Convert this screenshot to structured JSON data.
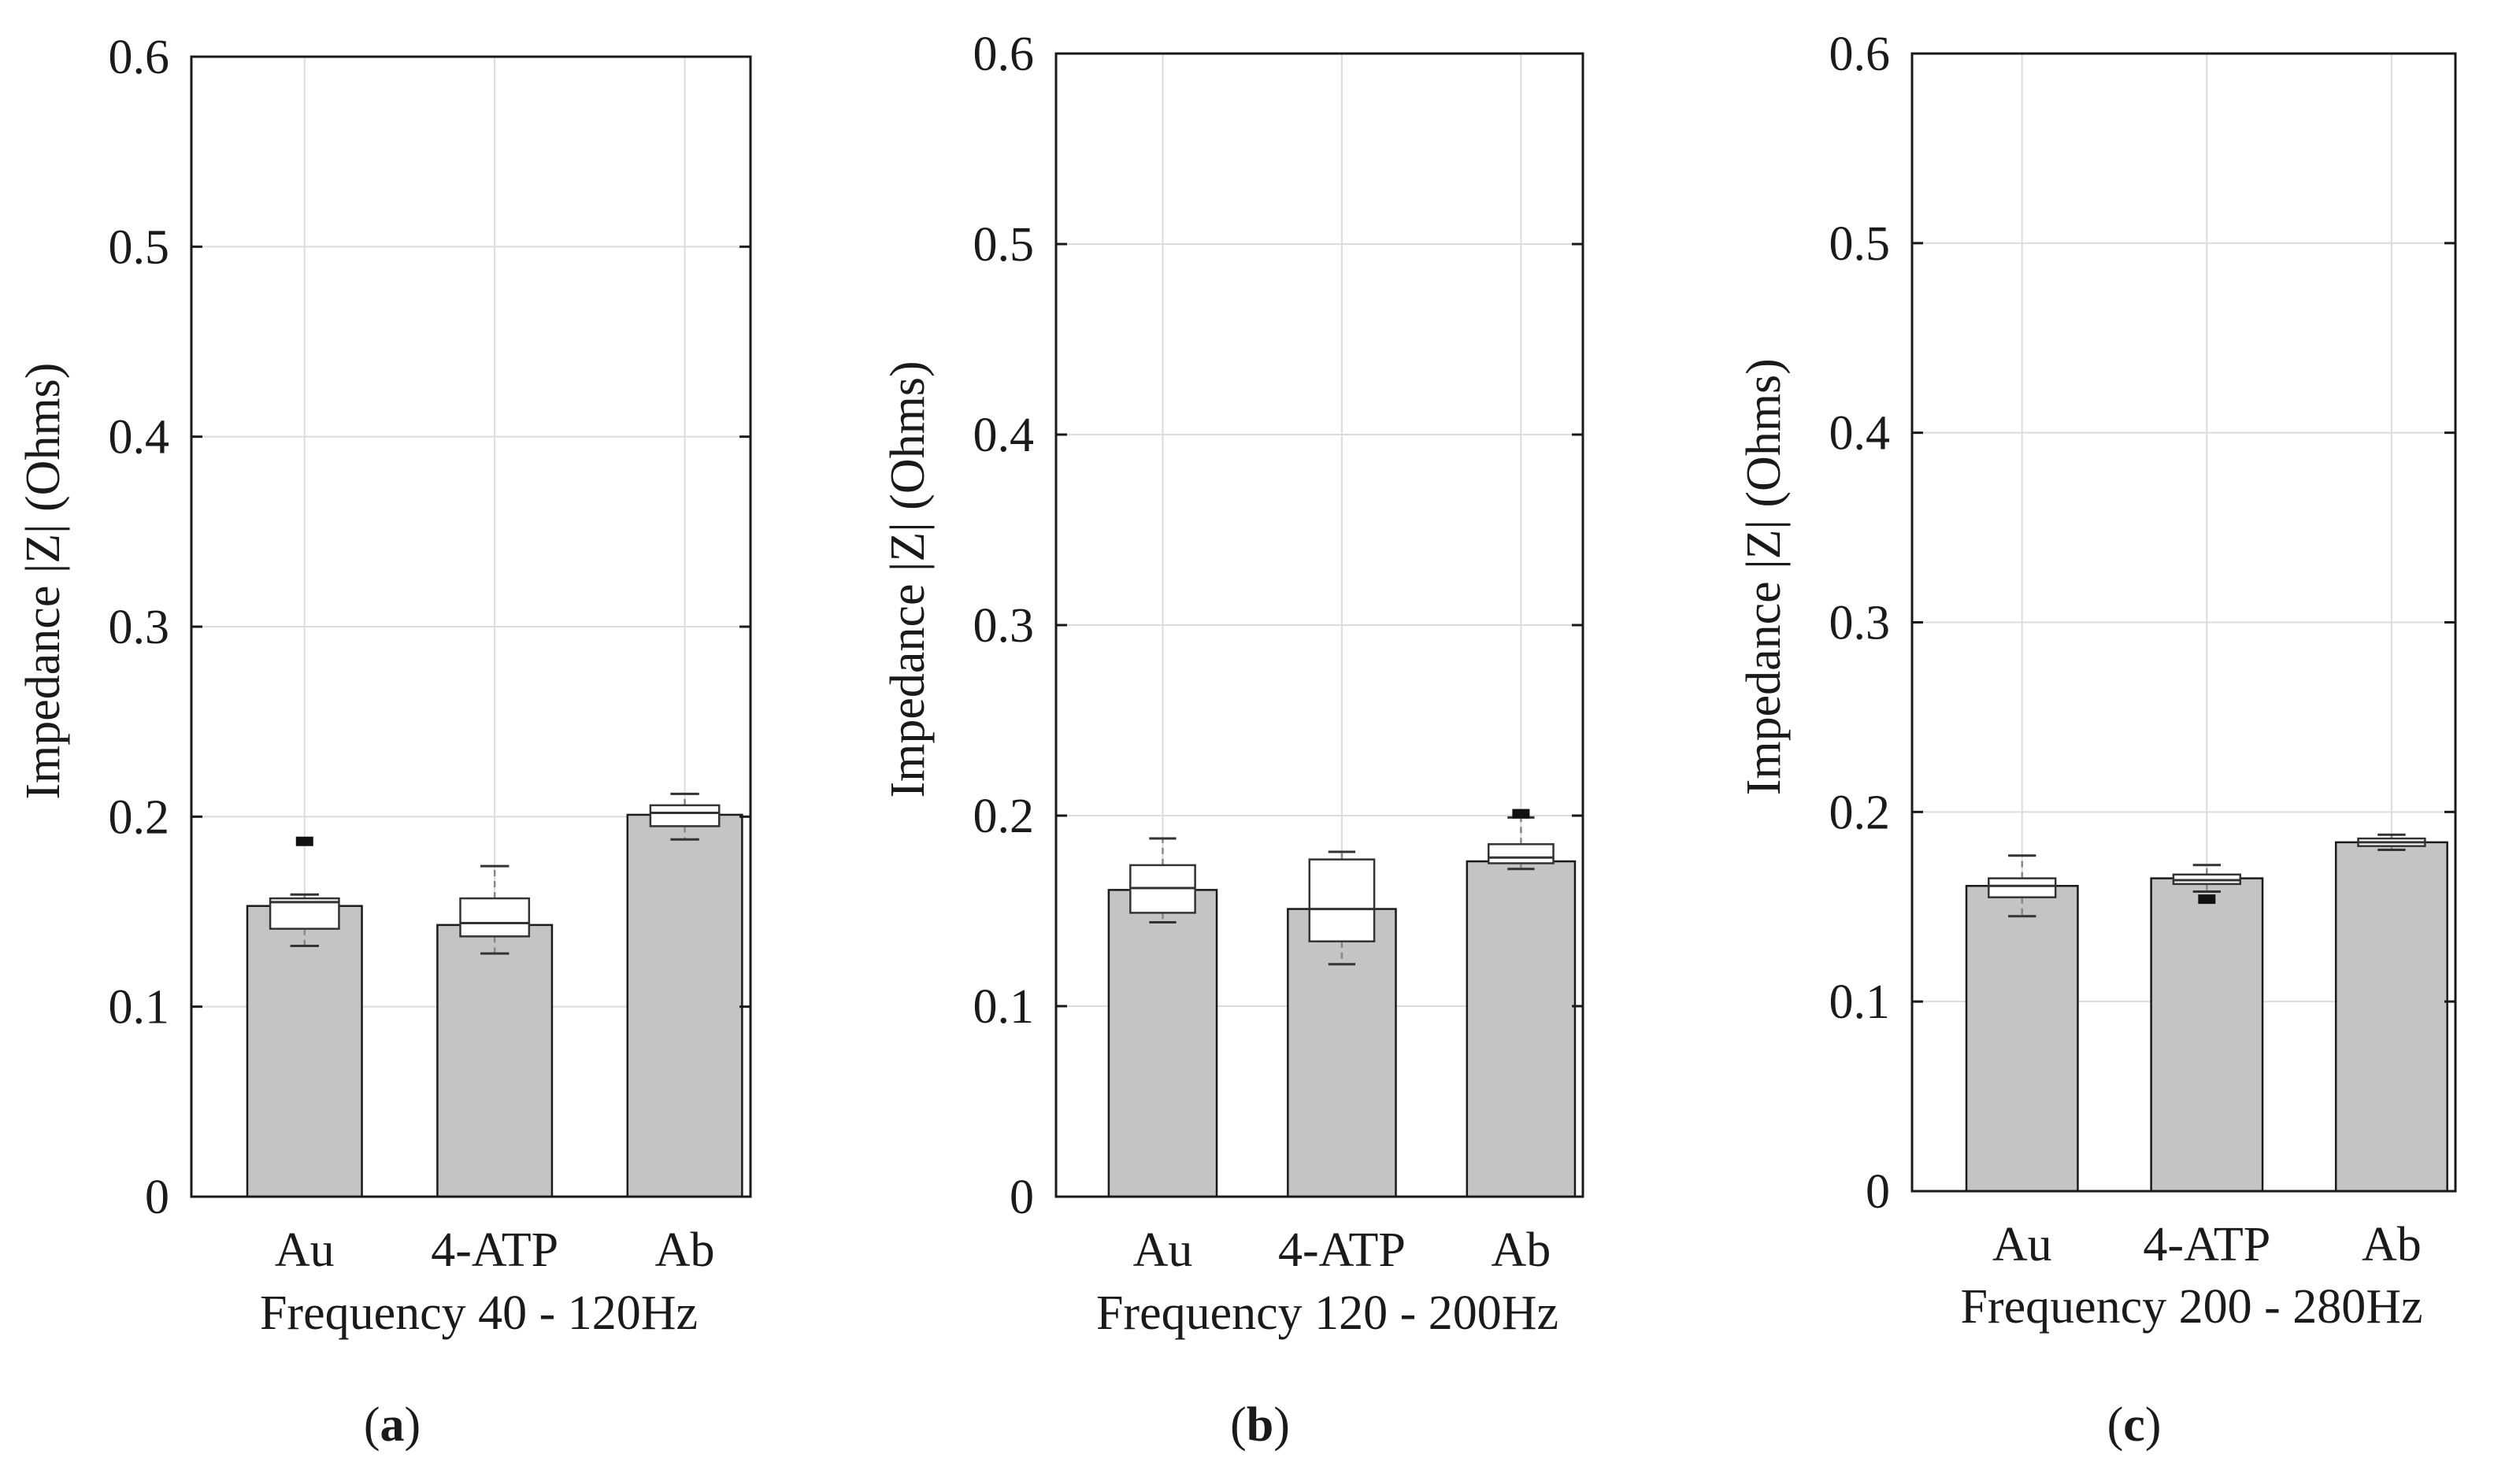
{
  "chart_data": [
    {
      "type": "bar",
      "panel_label": "a",
      "ylabel": "Impedance |Z| (Ohms)",
      "xlabel": "Frequency 40 - 120Hz",
      "ylim": [
        0,
        0.6
      ],
      "yticks": [
        0,
        0.1,
        0.2,
        0.3,
        0.4,
        0.5,
        0.6
      ],
      "ytick_labels": [
        "0",
        "0.1",
        "0.2",
        "0.3",
        "0.4",
        "0.5",
        "0.6"
      ],
      "grid": true,
      "categories": [
        "Au",
        "4-ATP",
        "Ab"
      ],
      "values": [
        0.153,
        0.143,
        0.201
      ],
      "boxplots": [
        {
          "whisker_low": 0.132,
          "q1": 0.141,
          "median": 0.155,
          "q3": 0.157,
          "whisker_high": 0.159,
          "outliers": [
            0.187
          ]
        },
        {
          "whisker_low": 0.128,
          "q1": 0.137,
          "median": 0.144,
          "q3": 0.157,
          "whisker_high": 0.174,
          "outliers": []
        },
        {
          "whisker_low": 0.188,
          "q1": 0.195,
          "median": 0.202,
          "q3": 0.206,
          "whisker_high": 0.212,
          "outliers": []
        }
      ]
    },
    {
      "type": "bar",
      "panel_label": "b",
      "ylabel": "Impedance |Z| (Ohms)",
      "xlabel": "Frequency 120 - 200Hz",
      "ylim": [
        0,
        0.6
      ],
      "yticks": [
        0,
        0.1,
        0.2,
        0.3,
        0.4,
        0.5,
        0.6
      ],
      "ytick_labels": [
        "0",
        "0.1",
        "0.2",
        "0.3",
        "0.4",
        "0.5",
        "0.6"
      ],
      "grid": true,
      "categories": [
        "Au",
        "4-ATP",
        "Ab"
      ],
      "values": [
        0.161,
        0.151,
        0.176
      ],
      "boxplots": [
        {
          "whisker_low": 0.144,
          "q1": 0.149,
          "median": 0.162,
          "q3": 0.174,
          "whisker_high": 0.188,
          "outliers": []
        },
        {
          "whisker_low": 0.122,
          "q1": 0.134,
          "median": 0.151,
          "q3": 0.177,
          "whisker_high": 0.181,
          "outliers": []
        },
        {
          "whisker_low": 0.172,
          "q1": 0.175,
          "median": 0.178,
          "q3": 0.185,
          "whisker_high": 0.199,
          "outliers": [
            0.201
          ]
        }
      ]
    },
    {
      "type": "bar",
      "panel_label": "c",
      "ylabel": "Impedance |Z| (Ohms)",
      "xlabel": "Frequency 200 - 280Hz",
      "ylim": [
        0,
        0.6
      ],
      "yticks": [
        0,
        0.1,
        0.2,
        0.3,
        0.4,
        0.5,
        0.6
      ],
      "ytick_labels": [
        "0",
        "0.1",
        "0.2",
        "0.3",
        "0.4",
        "0.5",
        "0.6"
      ],
      "grid": true,
      "categories": [
        "Au",
        "4-ATP",
        "Ab"
      ],
      "values": [
        0.161,
        0.165,
        0.184
      ],
      "boxplots": [
        {
          "whisker_low": 0.145,
          "q1": 0.155,
          "median": 0.161,
          "q3": 0.165,
          "whisker_high": 0.177,
          "outliers": []
        },
        {
          "whisker_low": 0.158,
          "q1": 0.162,
          "median": 0.164,
          "q3": 0.167,
          "whisker_high": 0.172,
          "outliers": [
            0.154
          ]
        },
        {
          "whisker_low": 0.18,
          "q1": 0.182,
          "median": 0.184,
          "q3": 0.186,
          "whisker_high": 0.188,
          "outliers": []
        }
      ]
    }
  ],
  "colors": {
    "bar_fill": "#c4c4c4",
    "bar_stroke": "#1a1a1a",
    "box_fill": "#ffffff",
    "box_stroke": "#333333",
    "whisker": "#888888",
    "grid": "#dcdcdc",
    "axis": "#1a1a1a",
    "outlier": "#111111"
  }
}
